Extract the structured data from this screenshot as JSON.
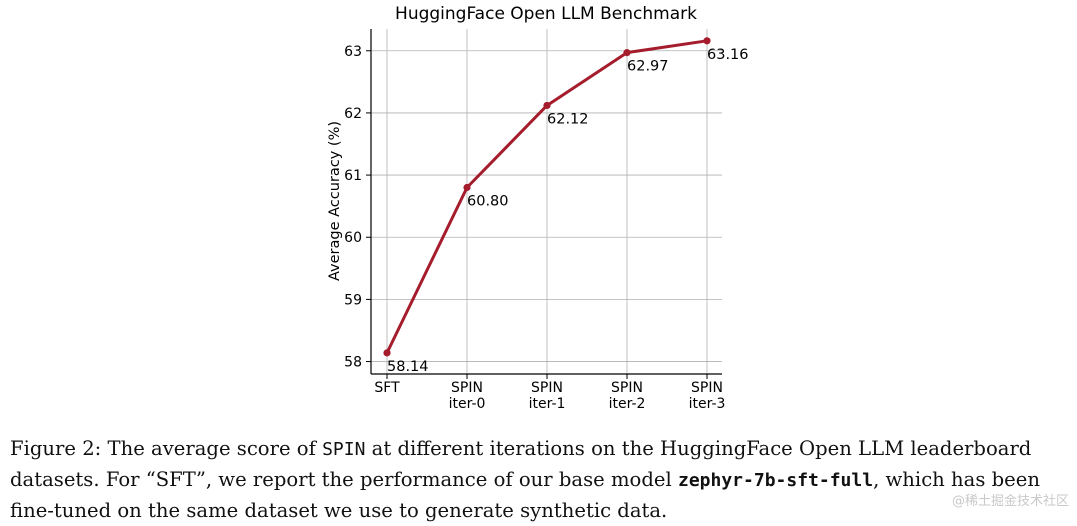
{
  "chart_data": {
    "type": "line",
    "title": "HuggingFace Open LLM Benchmark",
    "xlabel": "",
    "ylabel": "Average Accuracy (%)",
    "categories": [
      [
        "SFT"
      ],
      [
        "SPIN",
        "iter-0"
      ],
      [
        "SPIN",
        "iter-1"
      ],
      [
        "SPIN",
        "iter-2"
      ],
      [
        "SPIN",
        "iter-3"
      ]
    ],
    "values": [
      58.14,
      60.8,
      62.12,
      62.97,
      63.16
    ],
    "value_labels": [
      "58.14",
      "60.80",
      "62.12",
      "62.97",
      "63.16"
    ],
    "yticks": [
      58,
      59,
      60,
      61,
      62,
      63
    ],
    "ylim": [
      57.8,
      63.35
    ],
    "grid": true,
    "line_color": "#a51d2d"
  },
  "caption": {
    "figure_label": "Figure 2:",
    "text_1": " The average score of ",
    "spin": "SPIN",
    "text_2": " at different iterations on the HuggingFace Open LLM leaderboard datasets. For “SFT”, we report the performance of our base model ",
    "model": "zephyr-7b-sft-full",
    "text_3": ", which has been fine-tuned on the same dataset we use to generate synthetic data."
  },
  "watermark": "@稀土掘金技术社区"
}
